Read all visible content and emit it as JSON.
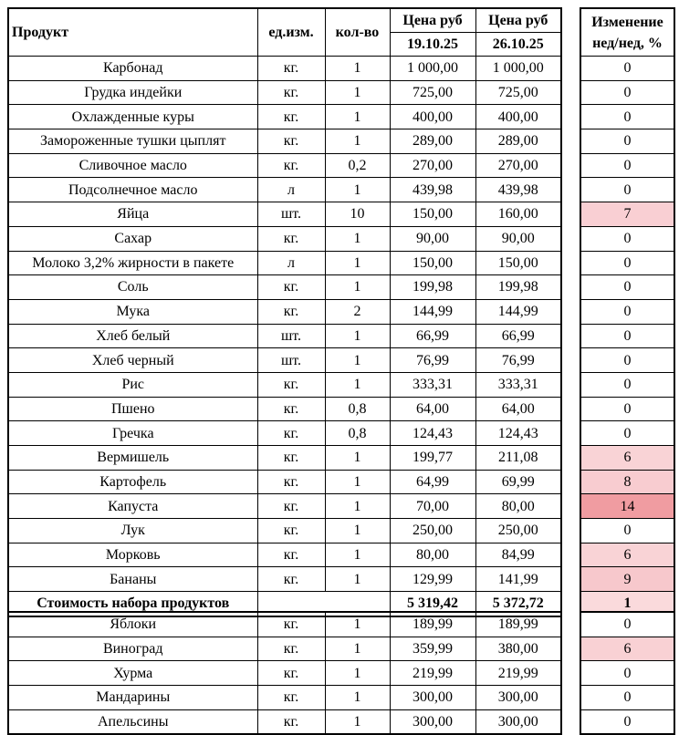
{
  "colors": {
    "border": "#000000",
    "background": "#ffffff",
    "highlight_light": "#f9d1d4",
    "highlight_strong": "#f09ca1"
  },
  "header": {
    "col_product": "Продукт",
    "col_unit": "ед.изм.",
    "col_qty": "кол-во",
    "col_price": "Цена руб",
    "date1": "19.10.25",
    "date2": "26.10.25",
    "col_change_line1": "Изменение",
    "col_change_line2": "нед/нед, %"
  },
  "main_table": {
    "rows": [
      {
        "product": "Карбонад",
        "unit": "кг.",
        "qty": "1",
        "price1": "1 000,00",
        "price2": "1 000,00",
        "change": "0",
        "change_bg": "#ffffff"
      },
      {
        "product": "Грудка индейки",
        "unit": "кг.",
        "qty": "1",
        "price1": "725,00",
        "price2": "725,00",
        "change": "0",
        "change_bg": "#ffffff"
      },
      {
        "product": "Охлажденные куры",
        "unit": "кг.",
        "qty": "1",
        "price1": "400,00",
        "price2": "400,00",
        "change": "0",
        "change_bg": "#ffffff"
      },
      {
        "product": "Замороженные тушки цыплят",
        "unit": "кг.",
        "qty": "1",
        "price1": "289,00",
        "price2": "289,00",
        "change": "0",
        "change_bg": "#ffffff"
      },
      {
        "product": "Сливочное масло",
        "unit": "кг.",
        "qty": "0,2",
        "price1": "270,00",
        "price2": "270,00",
        "change": "0",
        "change_bg": "#ffffff"
      },
      {
        "product": "Подсолнечное масло",
        "unit": "л",
        "qty": "1",
        "price1": "439,98",
        "price2": "439,98",
        "change": "0",
        "change_bg": "#ffffff"
      },
      {
        "product": "Яйца",
        "unit": "шт.",
        "qty": "10",
        "price1": "150,00",
        "price2": "160,00",
        "change": "7",
        "change_bg": "#f9cfd3"
      },
      {
        "product": "Сахар",
        "unit": "кг.",
        "qty": "1",
        "price1": "90,00",
        "price2": "90,00",
        "change": "0",
        "change_bg": "#ffffff"
      },
      {
        "product": "Молоко 3,2% жирности в пакете",
        "unit": "л",
        "qty": "1",
        "price1": "150,00",
        "price2": "150,00",
        "change": "0",
        "change_bg": "#ffffff"
      },
      {
        "product": "Соль",
        "unit": "кг.",
        "qty": "1",
        "price1": "199,98",
        "price2": "199,98",
        "change": "0",
        "change_bg": "#ffffff"
      },
      {
        "product": "Мука",
        "unit": "кг.",
        "qty": "2",
        "price1": "144,99",
        "price2": "144,99",
        "change": "0",
        "change_bg": "#ffffff"
      },
      {
        "product": "Хлеб белый",
        "unit": "шт.",
        "qty": "1",
        "price1": "66,99",
        "price2": "66,99",
        "change": "0",
        "change_bg": "#ffffff"
      },
      {
        "product": "Хлеб черный",
        "unit": "шт.",
        "qty": "1",
        "price1": "76,99",
        "price2": "76,99",
        "change": "0",
        "change_bg": "#ffffff"
      },
      {
        "product": "Рис",
        "unit": "кг.",
        "qty": "1",
        "price1": "333,31",
        "price2": "333,31",
        "change": "0",
        "change_bg": "#ffffff"
      },
      {
        "product": "Пшено",
        "unit": "кг.",
        "qty": "0,8",
        "price1": "64,00",
        "price2": "64,00",
        "change": "0",
        "change_bg": "#ffffff"
      },
      {
        "product": "Гречка",
        "unit": "кг.",
        "qty": "0,8",
        "price1": "124,43",
        "price2": "124,43",
        "change": "0",
        "change_bg": "#ffffff"
      },
      {
        "product": "Вермишель",
        "unit": "кг.",
        "qty": "1",
        "price1": "199,77",
        "price2": "211,08",
        "change": "6",
        "change_bg": "#f9d3d6"
      },
      {
        "product": "Картофель",
        "unit": "кг.",
        "qty": "1",
        "price1": "64,99",
        "price2": "69,99",
        "change": "8",
        "change_bg": "#f8ccd0"
      },
      {
        "product": "Капуста",
        "unit": "кг.",
        "qty": "1",
        "price1": "70,00",
        "price2": "80,00",
        "change": "14",
        "change_bg": "#f09ca1"
      },
      {
        "product": "Лук",
        "unit": "кг.",
        "qty": "1",
        "price1": "250,00",
        "price2": "250,00",
        "change": "0",
        "change_bg": "#ffffff"
      },
      {
        "product": "Морковь",
        "unit": "кг.",
        "qty": "1",
        "price1": "80,00",
        "price2": "84,99",
        "change": "6",
        "change_bg": "#f9d3d6"
      },
      {
        "product": "Бананы",
        "unit": "кг.",
        "qty": "1",
        "price1": "129,99",
        "price2": "141,99",
        "change": "9",
        "change_bg": "#f7c8cc"
      }
    ],
    "total": {
      "product": "Стоимость набора продуктов",
      "unit": "",
      "qty": "",
      "price1": "5 319,42",
      "price2": "5 372,72",
      "change": "1",
      "change_bg": "#fadadc"
    }
  },
  "fruits_table": {
    "rows": [
      {
        "product": "Яблоки",
        "unit": "кг.",
        "qty": "1",
        "price1": "189,99",
        "price2": "189,99",
        "change": "0",
        "change_bg": "#ffffff"
      },
      {
        "product": "Виноград",
        "unit": "кг.",
        "qty": "1",
        "price1": "359,99",
        "price2": "380,00",
        "change": "6",
        "change_bg": "#f9d1d4"
      },
      {
        "product": "Хурма",
        "unit": "кг.",
        "qty": "1",
        "price1": "219,99",
        "price2": "219,99",
        "change": "0",
        "change_bg": "#ffffff"
      },
      {
        "product": "Мандарины",
        "unit": "кг.",
        "qty": "1",
        "price1": "300,00",
        "price2": "300,00",
        "change": "0",
        "change_bg": "#ffffff"
      },
      {
        "product": "Апельсины",
        "unit": "кг.",
        "qty": "1",
        "price1": "300,00",
        "price2": "300,00",
        "change": "0",
        "change_bg": "#ffffff"
      }
    ]
  }
}
